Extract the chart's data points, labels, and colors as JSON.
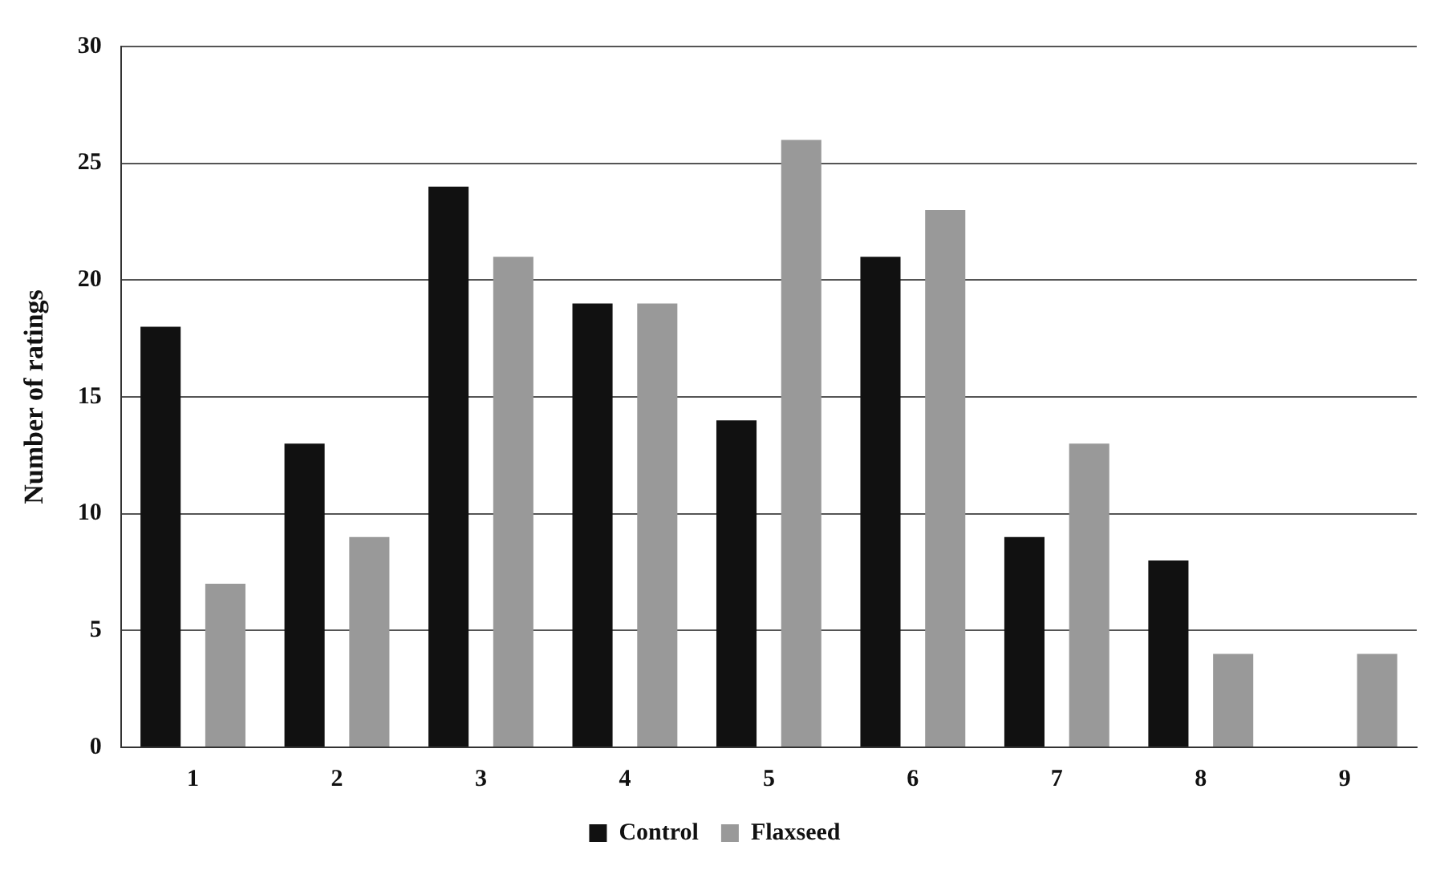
{
  "chart_data": {
    "type": "bar",
    "ylabel": "Number of ratings",
    "categories": [
      "1",
      "2",
      "3",
      "4",
      "5",
      "6",
      "7",
      "8",
      "9"
    ],
    "series": [
      {
        "name": "Control",
        "color": "#111111",
        "values": [
          18,
          13,
          24,
          19,
          14,
          21,
          9,
          8,
          null
        ]
      },
      {
        "name": "Flaxseed",
        "color": "#999999",
        "values": [
          7,
          9,
          21,
          19,
          26,
          23,
          13,
          4,
          4
        ]
      }
    ],
    "ylim": [
      0,
      30
    ],
    "yticks": [
      0,
      5,
      10,
      15,
      20,
      25,
      30
    ],
    "grid": "y",
    "legend": "bottom"
  }
}
